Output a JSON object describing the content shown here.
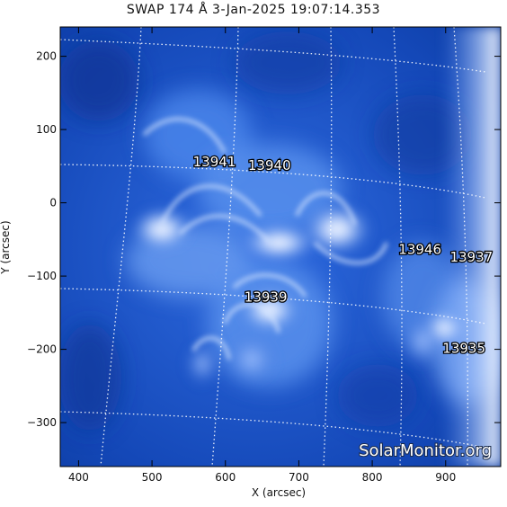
{
  "title": "SWAP 174 Å  3-Jan-2025 19:07:14.353",
  "x_axis": {
    "label": "X (arcsec)",
    "range": [
      375,
      975
    ],
    "ticks": [
      400,
      500,
      600,
      700,
      800,
      900
    ],
    "tick_labels": [
      "400",
      "500",
      "600",
      "700",
      "800",
      "900"
    ]
  },
  "y_axis": {
    "label": "Y (arcsec)",
    "range": [
      -360,
      240
    ],
    "ticks": [
      200,
      100,
      0,
      -100,
      -200,
      -300
    ],
    "tick_labels": [
      "200",
      "100",
      "0",
      "−100",
      "−200",
      "−300"
    ]
  },
  "active_regions": [
    {
      "id": "13941",
      "x": 585,
      "y": 50
    },
    {
      "id": "13940",
      "x": 660,
      "y": 45
    },
    {
      "id": "13946",
      "x": 865,
      "y": -70
    },
    {
      "id": "13937",
      "x": 935,
      "y": -80
    },
    {
      "id": "13939",
      "x": 655,
      "y": -135
    },
    {
      "id": "13935",
      "x": 925,
      "y": -205
    }
  ],
  "watermark": "SolarMonitor.org",
  "colors": {
    "background_dark": "#0a3fa8",
    "mid_blue": "#3a78e0",
    "bright": "#f4f8ff",
    "grid": "#ffffff"
  }
}
